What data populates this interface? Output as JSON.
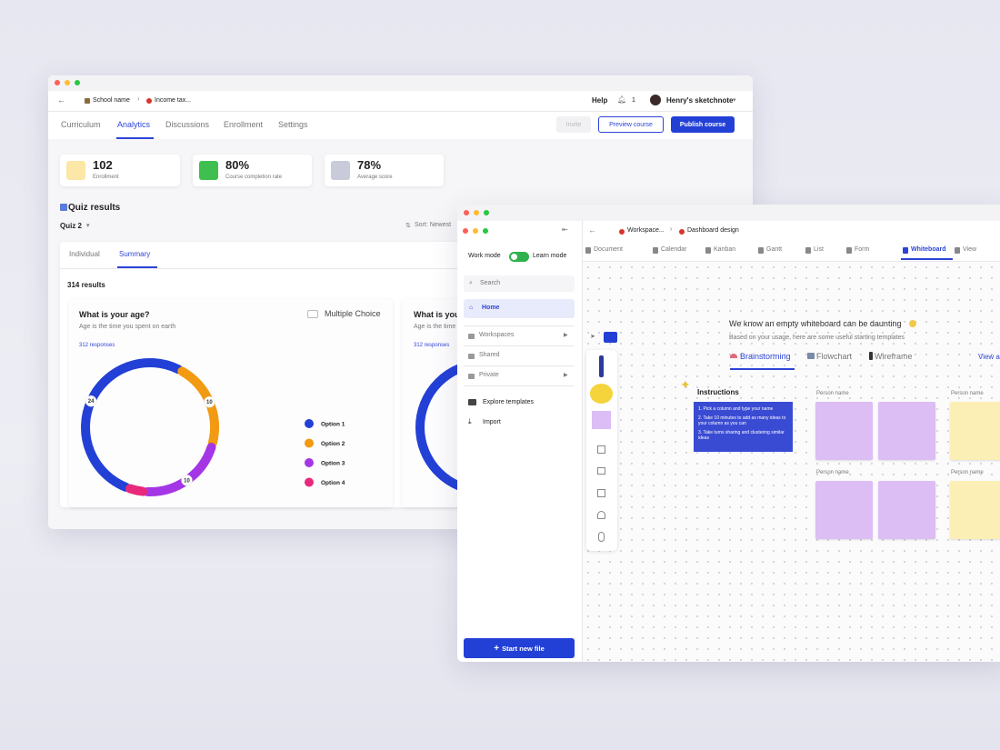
{
  "window1": {
    "breadcrumb": [
      "School name",
      "Income tax..."
    ],
    "help": "Help",
    "notification_count": "1",
    "user": "Henry's sketchnote",
    "tabs": [
      "Curriculum",
      "Analytics",
      "Discussions",
      "Enrollment",
      "Settings"
    ],
    "actions": [
      "Invite",
      "Preview course",
      "Publish course"
    ],
    "stats": [
      {
        "value": "102",
        "label": "Enrollment"
      },
      {
        "value": "80%",
        "label": "Course completion rate"
      },
      {
        "value": "78%",
        "label": "Average score"
      }
    ],
    "section_title": "Quiz results",
    "quiz": "Quiz 2",
    "sort": "Sort: Newest",
    "view_tabs": [
      "Individual",
      "Summary"
    ],
    "results": "314 results",
    "cards": [
      {
        "question": "What is your age?",
        "description": "Age is the time you spent on earth",
        "type": "Multiple Choice",
        "responses": "312 responses",
        "chart": {
          "type": "donut",
          "categories": [
            "Option 1",
            "Option 2",
            "Option 3",
            "Option 4"
          ],
          "values": [
            24,
            10,
            10,
            2
          ],
          "colors": [
            "#2340d6",
            "#f29a12",
            "#a436e6",
            "#e8287a"
          ]
        }
      },
      {
        "question": "What is your age?",
        "description": "Age is the time you spent on earth",
        "responses": "312 responses"
      }
    ]
  },
  "window2": {
    "sidebar": {
      "work_mode": "Work mode",
      "learn_mode": "Learn mode",
      "search": "Search",
      "home": "Home",
      "groups": [
        "Workspaces",
        "Shared",
        "Private"
      ],
      "links": [
        "Explore templates",
        "Import"
      ],
      "new_file": "Start new file"
    },
    "breadcrumb": [
      "Workspace...",
      "Dashboard design"
    ],
    "tabs": [
      "Document",
      "Calendar",
      "Kanban",
      "Gantt",
      "List",
      "Form",
      "Whiteboard",
      "View"
    ],
    "templates": {
      "title": "We know an empty whiteboard can be daunting",
      "subtitle": "Based on your usage, here are some useful starting templates",
      "tabs": [
        "Brainstorming",
        "Flowchart",
        "Wireframe"
      ],
      "view_all": "View a"
    },
    "instructions": {
      "title": "Instructions",
      "steps": [
        "1. Pick a column and type your name",
        "2. Take 10 minutes to add as many ideas to your column as you can",
        "3. Take turns sharing and clustering similar ideas"
      ]
    },
    "columns": [
      "Person name",
      "Person name",
      "Person name",
      "Person name"
    ]
  }
}
